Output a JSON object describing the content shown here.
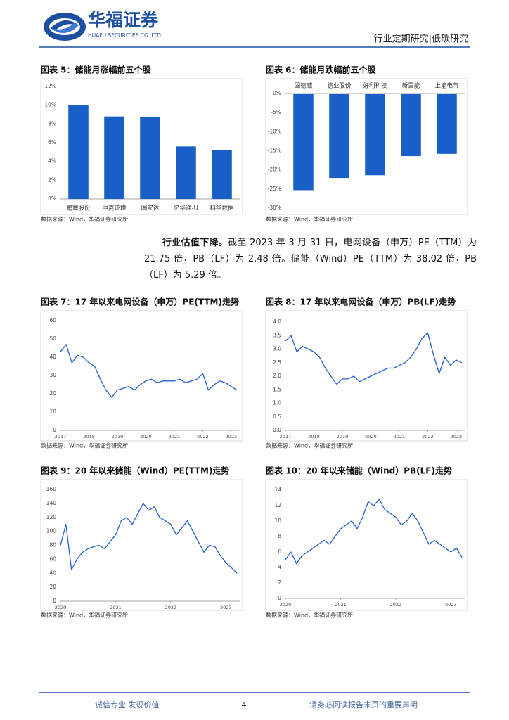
{
  "header": {
    "company": "华福证券",
    "company_en": "HUAFU SECURITIES CO.,LTD.",
    "report_type": "行业定期研究|低碳研究"
  },
  "chart_data": [
    {
      "type": "bar",
      "title": "图表 5：储能月涨幅前五个股",
      "source": "数据来源：Wind，华福证券研究所",
      "categories": [
        "鹏辉股份",
        "中菱环境",
        "国安达",
        "亿华通-U",
        "科华数据"
      ],
      "values": [
        10,
        8.8,
        8.7,
        5.6,
        5.2
      ],
      "color": "#1a5fc7",
      "ylim": [
        0,
        12
      ],
      "yticks": [
        {
          "value": 0,
          "label": "0%"
        },
        {
          "value": 2,
          "label": "2%"
        },
        {
          "value": 4,
          "label": "4%"
        },
        {
          "value": 6,
          "label": "6%"
        },
        {
          "value": 8,
          "label": "8%"
        },
        {
          "value": 10,
          "label": "10%"
        },
        {
          "value": 12,
          "label": "12%"
        }
      ]
    },
    {
      "type": "bar",
      "title": "图表 6：储能月跌幅前五个股",
      "source": "数据来源：Wind，华福证券研究所",
      "categories": [
        "固德威",
        "德业股份",
        "好利科技",
        "新雷能",
        "上能电气"
      ],
      "values": [
        -25.3,
        -22.1,
        -21.4,
        -16.4,
        -15.8
      ],
      "color": "#1a5fc7",
      "ylim": [
        -30,
        0
      ],
      "yticks": [
        {
          "value": 0,
          "label": "0%"
        },
        {
          "value": -5,
          "label": "-5%"
        },
        {
          "value": -10,
          "label": "-10%"
        },
        {
          "value": -15,
          "label": "-15%"
        },
        {
          "value": -20,
          "label": "-20%"
        },
        {
          "value": -25,
          "label": "-25%"
        },
        {
          "value": -30,
          "label": "-30%"
        }
      ]
    },
    {
      "type": "line",
      "title": "图表 7：17 年以来电网设备（申万）PE(TTM)走势",
      "source": "数据来源：Wind，华福证券研究所",
      "x": [
        2017.0,
        2017.2,
        2017.4,
        2017.6,
        2017.8,
        2018.0,
        2018.2,
        2018.4,
        2018.6,
        2018.8,
        2019.0,
        2019.2,
        2019.4,
        2019.6,
        2019.8,
        2020.0,
        2020.2,
        2020.4,
        2020.6,
        2020.8,
        2021.0,
        2021.2,
        2021.4,
        2021.6,
        2021.8,
        2022.0,
        2022.2,
        2022.4,
        2022.6,
        2022.8,
        2023.0,
        2023.2
      ],
      "values": [
        43,
        47,
        37,
        41,
        40,
        37,
        35,
        28,
        22,
        18,
        22,
        23,
        24,
        22,
        25,
        27,
        28,
        26,
        27,
        27,
        27,
        28,
        26,
        27,
        28,
        31,
        22,
        25,
        27,
        26,
        24,
        22
      ],
      "color": "#2060c8",
      "xlim": [
        2017,
        2023.3
      ],
      "xticks": [
        2017,
        2018,
        2019,
        2020,
        2021,
        2022,
        2023
      ],
      "ylim": [
        0,
        60
      ],
      "yticks": [
        0,
        10,
        20,
        30,
        40,
        50,
        60
      ]
    },
    {
      "type": "line",
      "title": "图表 8：17 年以来电网设备（申万）PB(LF)走势",
      "source": "数据来源：Wind，华福证券研究所",
      "x": [
        2017.0,
        2017.2,
        2017.4,
        2017.6,
        2017.8,
        2018.0,
        2018.2,
        2018.4,
        2018.6,
        2018.8,
        2019.0,
        2019.2,
        2019.4,
        2019.6,
        2019.8,
        2020.0,
        2020.2,
        2020.4,
        2020.6,
        2020.8,
        2021.0,
        2021.2,
        2021.4,
        2021.6,
        2021.8,
        2022.0,
        2022.2,
        2022.4,
        2022.6,
        2022.8,
        2023.0,
        2023.2
      ],
      "values": [
        3.3,
        3.5,
        2.9,
        3.1,
        3.0,
        2.9,
        2.7,
        2.3,
        2.0,
        1.7,
        1.9,
        1.9,
        2.0,
        1.8,
        1.9,
        2.0,
        2.1,
        2.2,
        2.3,
        2.3,
        2.4,
        2.5,
        2.7,
        3.0,
        3.4,
        3.6,
        2.8,
        2.1,
        2.7,
        2.4,
        2.6,
        2.5
      ],
      "color": "#2060c8",
      "xlim": [
        2017,
        2023.3
      ],
      "xticks": [
        2017,
        2018,
        2019,
        2020,
        2021,
        2022,
        2023
      ],
      "ylim": [
        0,
        4
      ],
      "yticks": [
        {
          "value": 0,
          "label": "0.0"
        },
        0.5,
        {
          "value": 1,
          "label": "1.0"
        },
        1.5,
        {
          "value": 2,
          "label": "2.0"
        },
        2.5,
        {
          "value": 3,
          "label": "3.0"
        },
        3.5,
        {
          "value": 4,
          "label": "4.0"
        }
      ]
    },
    {
      "type": "line",
      "title": "图表 9：20 年以来储能（Wind）PE(TTM)走势",
      "source": "数据来源：Wind，华福证券研究所",
      "x": [
        2020.0,
        2020.1,
        2020.2,
        2020.3,
        2020.4,
        2020.5,
        2020.6,
        2020.7,
        2020.8,
        2020.9,
        2021.0,
        2021.1,
        2021.2,
        2021.3,
        2021.4,
        2021.5,
        2021.6,
        2021.7,
        2021.8,
        2021.9,
        2022.0,
        2022.1,
        2022.2,
        2022.3,
        2022.4,
        2022.5,
        2022.6,
        2022.7,
        2022.8,
        2022.9,
        2023.0,
        2023.1,
        2023.2
      ],
      "values": [
        80,
        110,
        45,
        60,
        70,
        75,
        78,
        80,
        75,
        85,
        95,
        115,
        120,
        110,
        125,
        140,
        130,
        135,
        120,
        115,
        110,
        95,
        105,
        115,
        100,
        85,
        70,
        80,
        78,
        65,
        55,
        48,
        40
      ],
      "color": "#2060c8",
      "xlim": [
        2020,
        2023.25
      ],
      "xticks": [
        2020,
        2021,
        2022,
        2023
      ],
      "ylim": [
        0,
        160
      ],
      "yticks": [
        0,
        20,
        40,
        60,
        80,
        100,
        120,
        140,
        160
      ]
    },
    {
      "type": "line",
      "title": "图表 10：20 年以来储能（Wind）PB(LF)走势",
      "source": "数据来源：Wind，华福证券研究所",
      "x": [
        2020.0,
        2020.1,
        2020.2,
        2020.3,
        2020.4,
        2020.5,
        2020.6,
        2020.7,
        2020.8,
        2020.9,
        2021.0,
        2021.1,
        2021.2,
        2021.3,
        2021.4,
        2021.5,
        2021.6,
        2021.7,
        2021.8,
        2021.9,
        2022.0,
        2022.1,
        2022.2,
        2022.3,
        2022.4,
        2022.5,
        2022.6,
        2022.7,
        2022.8,
        2022.9,
        2023.0,
        2023.1,
        2023.2
      ],
      "values": [
        5,
        6,
        4.5,
        5.5,
        6,
        6.5,
        7,
        7.5,
        7,
        8,
        9,
        9.5,
        10,
        9,
        10.5,
        12.5,
        12,
        12.8,
        11.5,
        11,
        10.5,
        9.5,
        10,
        11,
        10,
        8.5,
        7,
        7.5,
        7,
        6.5,
        6,
        6.5,
        5.3
      ],
      "color": "#2060c8",
      "xlim": [
        2020,
        2023.25
      ],
      "xticks": [
        2020,
        2021,
        2022,
        2023
      ],
      "ylim": [
        0,
        14
      ],
      "yticks": [
        0,
        2,
        4,
        6,
        8,
        10,
        12,
        14
      ]
    }
  ],
  "paragraph": {
    "lead": "行业估值下降。",
    "body": "截至 2023 年 3 月 31 日，电网设备（申万）PE（TTM）为 21.75 倍，PB（LF）为 2.48 倍。储能（Wind）PE（TTM）为 38.02 倍，PB（LF）为 5.29 倍。"
  },
  "footer": {
    "left": "诚信专业  发现价值",
    "page": "4",
    "right": "请务必阅读报告末页的重要声明"
  }
}
